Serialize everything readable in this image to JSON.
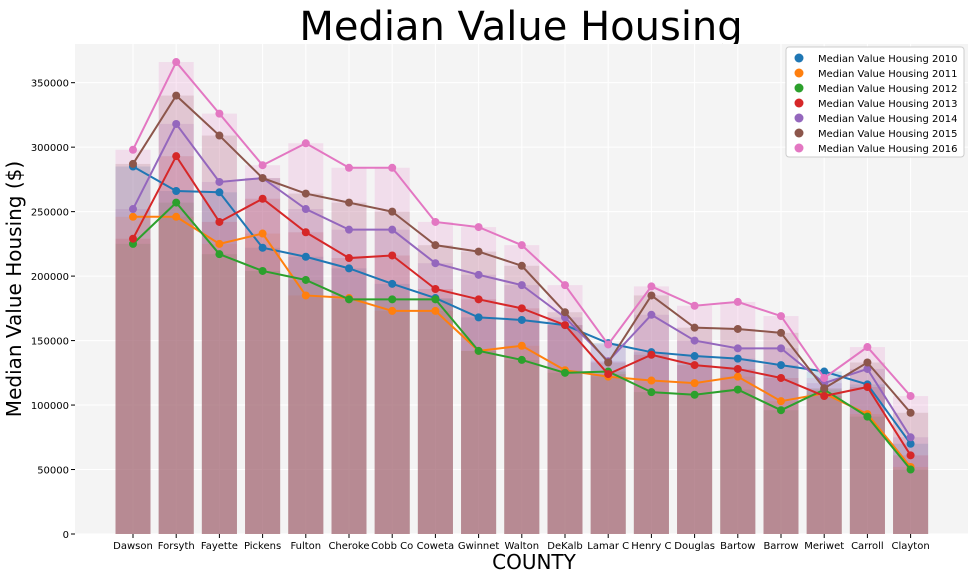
{
  "chart_data": {
    "type": "bar+line",
    "title": "Median Value Housing",
    "xlabel": "COUNTY",
    "ylabel": "Median Value Housing ($)",
    "ylim": [
      0,
      380000
    ],
    "yticks": [
      0,
      50000,
      100000,
      150000,
      200000,
      250000,
      300000,
      350000
    ],
    "grid": true,
    "legend_position": "top-right",
    "categories": [
      "Dawson",
      "Forsyth",
      "Fayette",
      "Pickens",
      "Fulton",
      "Cheroke",
      "Cobb Co",
      "Coweta",
      "Gwinnet",
      "Walton",
      "DeKalb",
      "Lamar C",
      "Henry C",
      "Douglas",
      "Bartow",
      "Barrow",
      "Meriwet",
      "Carroll",
      "Clayton"
    ],
    "series": [
      {
        "name": "Median Value Housing 2010",
        "color": "#1f77b4",
        "values": [
          285000,
          266000,
          265000,
          222000,
          215000,
          206000,
          194000,
          183000,
          168000,
          166000,
          162000,
          148000,
          141000,
          138000,
          136000,
          131000,
          126000,
          116000,
          70000
        ]
      },
      {
        "name": "Median Value Housing 2011",
        "color": "#ff7f0e",
        "values": [
          246000,
          246000,
          225000,
          233000,
          185000,
          183000,
          173000,
          173000,
          142000,
          146000,
          127000,
          122000,
          119000,
          117000,
          122000,
          103000,
          109000,
          93000,
          52000
        ]
      },
      {
        "name": "Median Value Housing 2012",
        "color": "#2ca02c",
        "values": [
          225000,
          257000,
          217000,
          204000,
          197000,
          182000,
          182000,
          182000,
          142000,
          135000,
          125000,
          126000,
          110000,
          108000,
          112000,
          96000,
          112000,
          91000,
          50000
        ]
      },
      {
        "name": "Median Value Housing 2013",
        "color": "#d62728",
        "values": [
          229000,
          293000,
          242000,
          260000,
          234000,
          214000,
          216000,
          190000,
          182000,
          175000,
          162000,
          124000,
          139000,
          131000,
          128000,
          121000,
          107000,
          114000,
          61000
        ]
      },
      {
        "name": "Median Value Housing 2014",
        "color": "#9467bd",
        "values": [
          252000,
          318000,
          273000,
          276000,
          252000,
          236000,
          236000,
          210000,
          201000,
          193000,
          168000,
          134000,
          170000,
          150000,
          144000,
          144000,
          117000,
          128000,
          75000
        ]
      },
      {
        "name": "Median Value Housing 2015",
        "color": "#8c564b",
        "values": [
          287000,
          340000,
          309000,
          276000,
          264000,
          257000,
          250000,
          224000,
          219000,
          208000,
          172000,
          133000,
          185000,
          160000,
          159000,
          156000,
          113000,
          133000,
          94000
        ]
      },
      {
        "name": "Median Value Housing 2016",
        "color": "#e377c2",
        "values": [
          298000,
          366000,
          326000,
          286000,
          303000,
          284000,
          284000,
          242000,
          238000,
          224000,
          193000,
          147000,
          192000,
          177000,
          180000,
          169000,
          121000,
          145000,
          107000
        ]
      }
    ]
  }
}
